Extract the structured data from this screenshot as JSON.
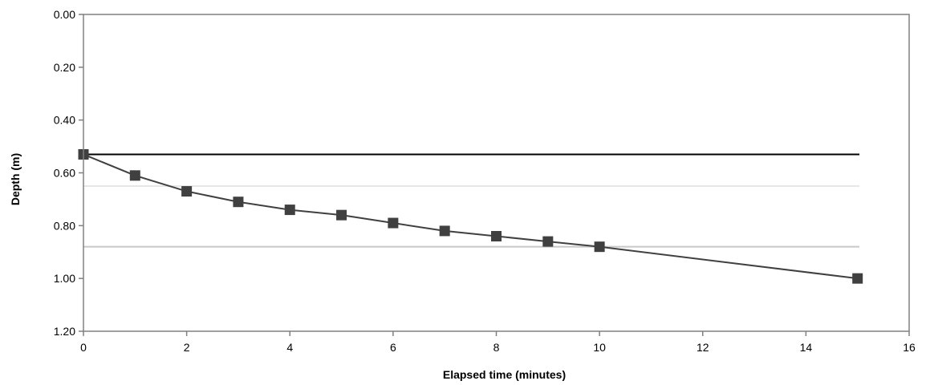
{
  "chart_data": {
    "type": "line",
    "title": "",
    "xlabel": "Elapsed time (minutes)",
    "ylabel": "Depth (m)",
    "xlim": [
      0,
      16
    ],
    "ylim": [
      0,
      1.2
    ],
    "y_inverted": true,
    "grid": false,
    "x_ticks": [
      0,
      2,
      4,
      6,
      8,
      10,
      12,
      14,
      16
    ],
    "x_tick_labels": [
      "0",
      "2",
      "4",
      "6",
      "8",
      "10",
      "12",
      "14",
      "16"
    ],
    "y_ticks": [
      0,
      0.2,
      0.4,
      0.6,
      0.8,
      1.0,
      1.2
    ],
    "y_tick_labels": [
      "0.00",
      "0.20",
      "0.40",
      "0.60",
      "0.80",
      "1.00",
      "1.20"
    ],
    "series": [
      {
        "x": [
          0,
          1,
          2,
          3,
          4,
          5,
          6,
          7,
          8,
          9,
          10,
          15
        ],
        "y": [
          0.53,
          0.61,
          0.67,
          0.71,
          0.74,
          0.76,
          0.79,
          0.82,
          0.84,
          0.86,
          0.88,
          1.0
        ],
        "color": "#404040",
        "marker": "square"
      }
    ],
    "reference_lines": [
      {
        "y": 0.53,
        "color": "#000000"
      },
      {
        "y": 0.65,
        "color": "#e6e6e6"
      },
      {
        "y": 0.88,
        "color": "#c8c8c8"
      }
    ]
  }
}
